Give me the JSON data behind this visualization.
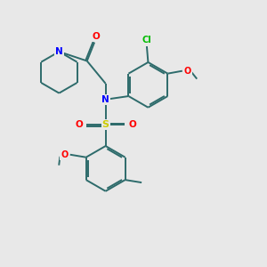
{
  "bg_color": "#e8e8e8",
  "bond_color": "#2d6b6b",
  "N_color": "#0000ff",
  "O_color": "#ff0000",
  "S_color": "#cccc00",
  "Cl_color": "#00bb00",
  "line_width": 1.4,
  "dbo": 0.09,
  "figsize": [
    3.0,
    3.0
  ],
  "dpi": 100,
  "xlim": [
    0,
    10
  ],
  "ylim": [
    0,
    10
  ]
}
